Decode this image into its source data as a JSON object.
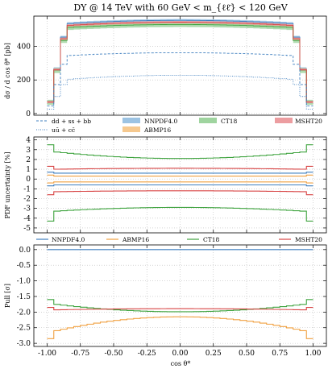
{
  "title": "DY @ 14 TeV with 60 GeV < m_{ℓℓ̄} < 120 GeV",
  "xlabel": "cos θ*",
  "colors": {
    "nnpdf": "#3f7fbf",
    "abmp": "#f0a040",
    "ct18": "#3fa33f",
    "msht": "#d84545"
  },
  "legend_top": {
    "lumi_dd": "dd + ss + bb",
    "lumi_uu": "uū + cc̄",
    "nnpdf": "NNPDF4.0",
    "abmp": "ABMP16",
    "ct18": "CT18",
    "msht": "MSHT20"
  },
  "legend_pull": {
    "nnpdf": "NNPDF4.0",
    "abmp": "ABMP16",
    "ct18": "CT18",
    "msht": "MSHT20"
  },
  "chart_data": [
    {
      "type": "area",
      "panel": "cross-section",
      "ylabel": "dσ / d cos θ* [pb]",
      "ylim": [
        -10,
        580
      ],
      "yticks": [
        0,
        200,
        400
      ],
      "xlim": [
        -1.1,
        1.1
      ],
      "series": [
        {
          "name": "NNPDF4.0",
          "center_edge": 535,
          "center_mid": 555,
          "half_band": 8
        },
        {
          "name": "ABMP16",
          "center_edge": 518,
          "center_mid": 538,
          "half_band": 4
        },
        {
          "name": "CT18",
          "center_edge": 512,
          "center_mid": 530,
          "half_band": 15
        },
        {
          "name": "MSHT20",
          "center_edge": 524,
          "center_mid": 544,
          "half_band": 7
        },
        {
          "name": "dd + ss + bb",
          "center_edge": 345,
          "center_mid": 362,
          "style": "dashed"
        },
        {
          "name": "uū + cc̄",
          "center_edge": 203,
          "center_mid": 228,
          "style": "dotted"
        }
      ]
    },
    {
      "type": "line",
      "panel": "uncertainty",
      "ylabel": "PDF uncertainty [%]",
      "ylim": [
        -5.5,
        4.3
      ],
      "yticks": [
        -5,
        -4,
        -3,
        -2,
        -1,
        0,
        1,
        2,
        3,
        4
      ],
      "xlim": [
        -1.1,
        1.1
      ],
      "series": [
        {
          "name": "NNPDF4.0",
          "upper": [
            0.6,
            0.6,
            0.7
          ],
          "lower": [
            -0.6,
            -0.6,
            -0.7
          ]
        },
        {
          "name": "ABMP16",
          "upper": [
            0.3,
            0.3,
            0.4
          ],
          "lower": [
            -0.3,
            -0.3,
            -0.4
          ]
        },
        {
          "name": "CT18",
          "upper": [
            2.8,
            2.1,
            3.5
          ],
          "lower": [
            -3.3,
            -2.9,
            -4.3
          ]
        },
        {
          "name": "MSHT20",
          "upper": [
            1.0,
            1.1,
            1.3
          ],
          "lower": [
            -1.3,
            -1.2,
            -1.6
          ]
        }
      ]
    },
    {
      "type": "line",
      "panel": "pull",
      "ylabel": "Pull [σ]",
      "ylim": [
        -3.1,
        0.15
      ],
      "yticks": [
        -3.0,
        -2.5,
        -2.0,
        -1.5,
        -1.0,
        -0.5,
        0.0
      ],
      "xticks": [
        -1.0,
        -0.75,
        -0.5,
        -0.25,
        0.0,
        0.25,
        0.5,
        0.75,
        1.0
      ],
      "xlim": [
        -1.1,
        1.1
      ],
      "series": [
        {
          "name": "NNPDF4.0",
          "edge": 0.0,
          "mid": 0.0,
          "end": 0.0
        },
        {
          "name": "ABMP16",
          "edge": -2.62,
          "mid": -2.15,
          "end": -2.85
        },
        {
          "name": "CT18",
          "edge": -1.74,
          "mid": -1.99,
          "end": -1.6
        },
        {
          "name": "MSHT20",
          "edge": -1.93,
          "mid": -1.89,
          "end": -1.85
        }
      ]
    }
  ]
}
